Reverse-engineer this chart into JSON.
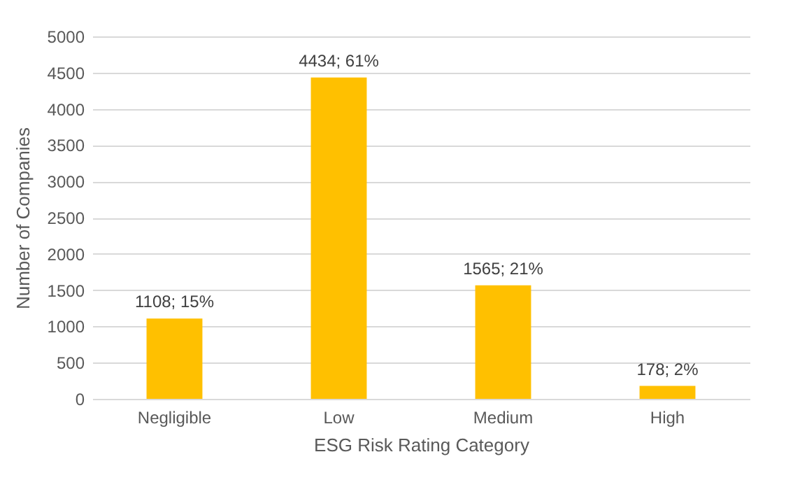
{
  "chart_data": {
    "type": "bar",
    "xlabel": "ESG Risk Rating Category",
    "ylabel": "Number of Companies",
    "categories": [
      "Negligible",
      "Low",
      "Medium",
      "High"
    ],
    "values": [
      1108,
      4434,
      1565,
      178
    ],
    "value_labels": [
      "1108; 15%",
      "4434; 61%",
      "1565; 21%",
      "178; 2%"
    ],
    "color": "#ffc000",
    "ylim": [
      0,
      5000
    ],
    "yticks": [
      0,
      500,
      1000,
      1500,
      2000,
      2500,
      3000,
      3500,
      4000,
      4500,
      5000
    ],
    "grid": "y"
  }
}
